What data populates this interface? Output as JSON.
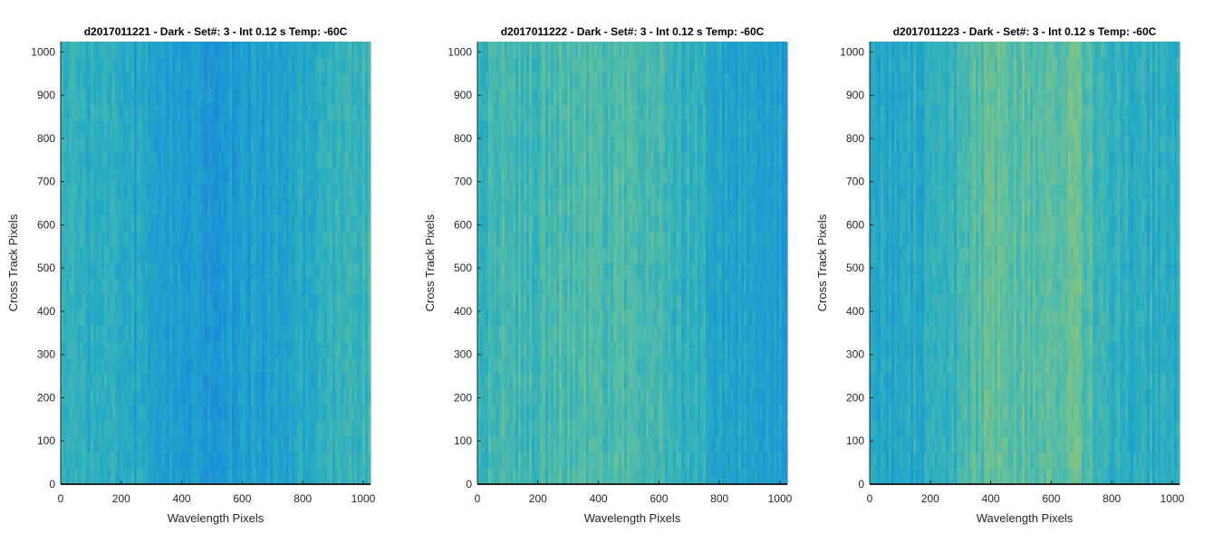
{
  "chart_data": [
    {
      "type": "heatmap",
      "title": "d2017011221 - Dark - Set#: 3 - Int 0.12 s Temp: -60C",
      "xlabel": "Wavelength Pixels",
      "ylabel": "Cross Track Pixels",
      "xlim": [
        0,
        1024
      ],
      "ylim": [
        0,
        1024
      ],
      "x_ticks": [
        0,
        200,
        400,
        600,
        800,
        1000
      ],
      "y_ticks": [
        0,
        100,
        200,
        300,
        400,
        500,
        600,
        700,
        800,
        900,
        1000
      ],
      "column_profile": [
        0.46,
        0.46,
        0.44,
        0.4,
        0.35,
        0.3,
        0.27,
        0.26,
        0.26,
        0.27,
        0.3,
        0.34,
        0.38,
        0.42,
        0.46,
        0.5
      ],
      "colormap": [
        "#1f78d6",
        "#1a94d6",
        "#25abc4",
        "#52bca8",
        "#8cc47c",
        "#c2c451"
      ]
    },
    {
      "type": "heatmap",
      "title": "d2017011222 - Dark - Set#: 3 - Int 0.12 s Temp: -60C",
      "xlabel": "Wavelength Pixels",
      "ylabel": "Cross Track Pixels",
      "xlim": [
        0,
        1024
      ],
      "ylim": [
        0,
        1024
      ],
      "x_ticks": [
        0,
        200,
        400,
        600,
        800,
        1000
      ],
      "y_ticks": [
        0,
        100,
        200,
        300,
        400,
        500,
        600,
        700,
        800,
        900,
        1000
      ],
      "column_profile": [
        0.5,
        0.52,
        0.53,
        0.55,
        0.56,
        0.57,
        0.58,
        0.58,
        0.55,
        0.52,
        0.46,
        0.4,
        0.36,
        0.33,
        0.31,
        0.3
      ],
      "colormap": [
        "#1f78d6",
        "#1a94d6",
        "#25abc4",
        "#52bca8",
        "#8cc47c",
        "#c2c451"
      ]
    },
    {
      "type": "heatmap",
      "title": "d2017011223 - Dark - Set#: 3 - Int 0.12 s Temp: -60C",
      "xlabel": "Wavelength Pixels",
      "ylabel": "Cross Track Pixels",
      "xlim": [
        0,
        1024
      ],
      "ylim": [
        0,
        1024
      ],
      "x_ticks": [
        0,
        200,
        400,
        600,
        800,
        1000
      ],
      "y_ticks": [
        0,
        100,
        200,
        300,
        400,
        500,
        600,
        700,
        800,
        900,
        1000
      ],
      "column_profile": [
        0.4,
        0.38,
        0.38,
        0.4,
        0.43,
        0.58,
        0.66,
        0.63,
        0.6,
        0.64,
        0.65,
        0.55,
        0.45,
        0.42,
        0.42,
        0.43
      ],
      "colormap": [
        "#1f78d6",
        "#1a94d6",
        "#25abc4",
        "#52bca8",
        "#8cc47c",
        "#c2c451"
      ]
    }
  ]
}
